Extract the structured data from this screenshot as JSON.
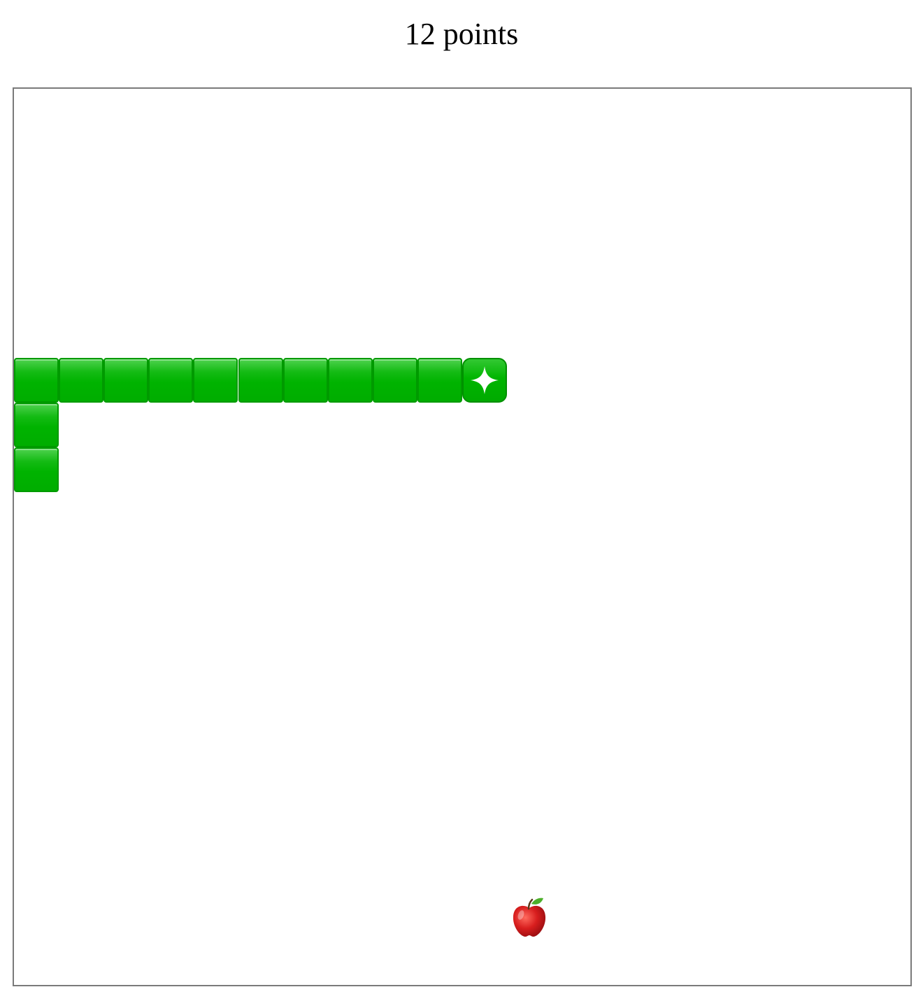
{
  "score_label": "12 points",
  "game": {
    "grid_size": 20,
    "snake": [
      {
        "col": 0,
        "row": 6
      },
      {
        "col": 0,
        "row": 7
      },
      {
        "col": 0,
        "row": 8
      },
      {
        "col": 0,
        "row": 6
      },
      {
        "col": 1,
        "row": 6
      },
      {
        "col": 2,
        "row": 6
      },
      {
        "col": 3,
        "row": 6
      },
      {
        "col": 4,
        "row": 6
      },
      {
        "col": 5,
        "row": 6
      },
      {
        "col": 6,
        "row": 6
      },
      {
        "col": 7,
        "row": 6
      },
      {
        "col": 8,
        "row": 6
      },
      {
        "col": 9,
        "row": 6
      }
    ],
    "head": {
      "col": 10,
      "row": 6,
      "icon": "sparkle-icon"
    },
    "food": {
      "col": 11,
      "row": 18,
      "icon": "apple-icon"
    },
    "colors": {
      "snake": "#00b300",
      "snake_border": "#009a00",
      "board_border": "#7a7a7a",
      "apple": "#d81e1e",
      "leaf": "#4caf2a"
    }
  }
}
